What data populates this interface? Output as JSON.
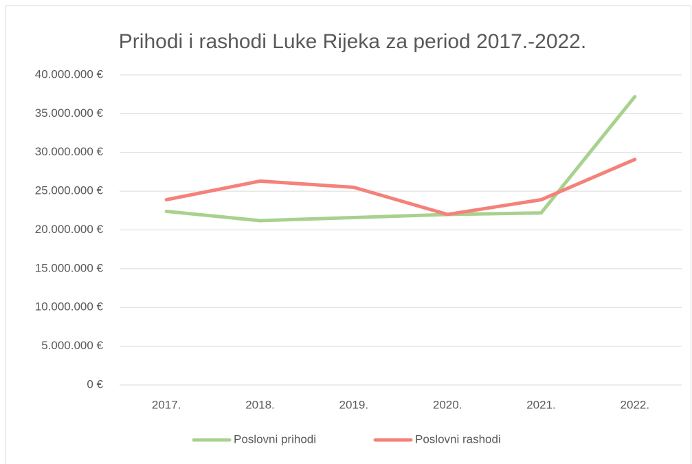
{
  "chart_data": {
    "type": "line",
    "title": "Prihodi i rashodi Luke Rijeka za period 2017.-2022.",
    "categories": [
      "2017.",
      "2018.",
      "2019.",
      "2020.",
      "2021.",
      "2022."
    ],
    "series": [
      {
        "name": "Poslovni prihodi",
        "color": "#a9d18e",
        "values": [
          22400000,
          21200000,
          21600000,
          22000000,
          22200000,
          37200000
        ]
      },
      {
        "name": "Poslovni rashodi",
        "color": "#f4817a",
        "values": [
          23900000,
          26300000,
          25500000,
          22000000,
          23900000,
          29100000
        ]
      }
    ],
    "ylim": [
      0,
      40000000
    ],
    "yticks": [
      {
        "value": 0,
        "label": "0 €"
      },
      {
        "value": 5000000,
        "label": "5.000.000 €"
      },
      {
        "value": 10000000,
        "label": "10.000.000 €"
      },
      {
        "value": 15000000,
        "label": "15.000.000 €"
      },
      {
        "value": 20000000,
        "label": "20.000.000 €"
      },
      {
        "value": 25000000,
        "label": "25.000.000 €"
      },
      {
        "value": 30000000,
        "label": "30.000.000 €"
      },
      {
        "value": 35000000,
        "label": "35.000.000 €"
      },
      {
        "value": 40000000,
        "label": "40.000.000 €"
      }
    ],
    "grid": true,
    "legend": "bottom"
  }
}
